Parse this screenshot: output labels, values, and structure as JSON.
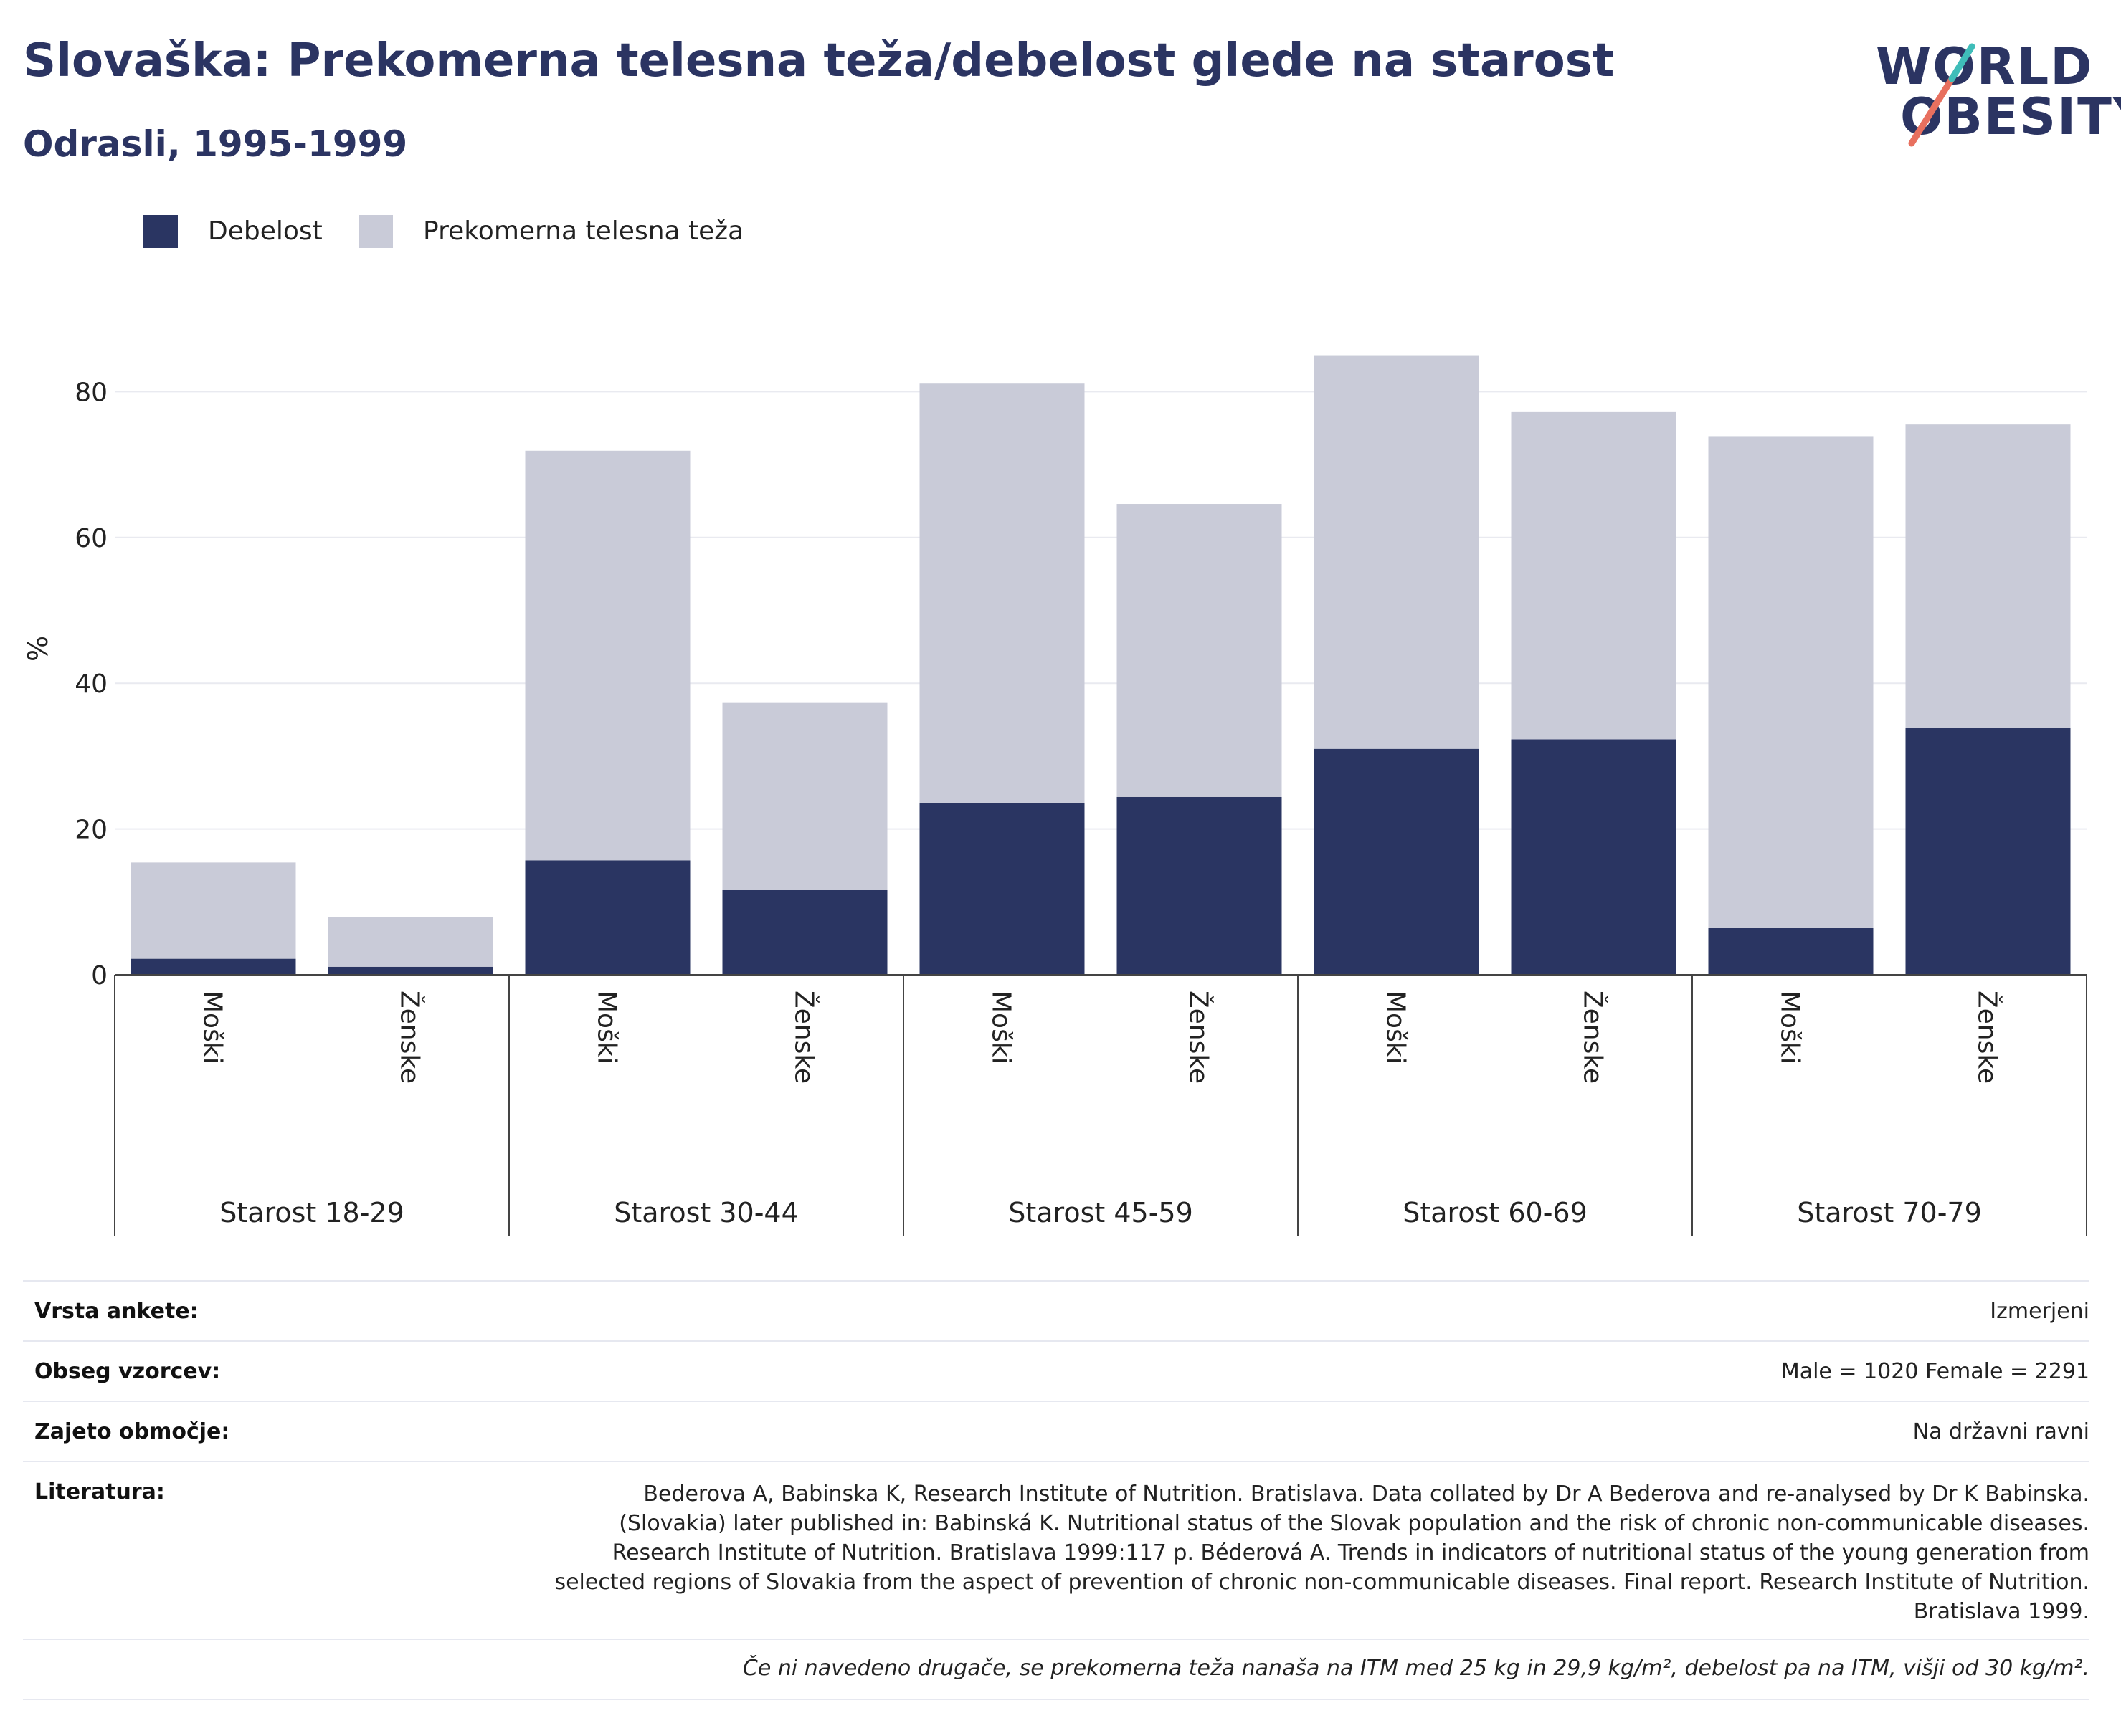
{
  "header": {
    "title": "Slovaška: Prekomerna telesna teža/debelost glede na starost",
    "subtitle": "Odrasli, 1995-1999"
  },
  "logo": {
    "line1": "WORLD",
    "line2": "OBESITY"
  },
  "legend": [
    {
      "label": "Debelost",
      "color": "#2a3562"
    },
    {
      "label": "Prekomerna telesna teža",
      "color": "#c9cbd8"
    }
  ],
  "chart_data": {
    "type": "bar",
    "stacked": true,
    "ylabel": "%",
    "ylim": [
      0,
      95
    ],
    "yticks": [
      0,
      20,
      40,
      60,
      80
    ],
    "grid": true,
    "legend_position": "top-left",
    "groups": [
      "Starost 18-29",
      "Starost 30-44",
      "Starost 45-59",
      "Starost 60-69",
      "Starost 70-79"
    ],
    "categories": [
      "Moški",
      "Ženske",
      "Moški",
      "Ženske",
      "Moški",
      "Ženske",
      "Moški",
      "Ženske",
      "Moški",
      "Ženske"
    ],
    "series": [
      {
        "name": "Debelost",
        "color": "#2a3562",
        "values": [
          2.2,
          1.1,
          15.7,
          11.7,
          23.6,
          24.4,
          31.0,
          32.3,
          6.4,
          33.9
        ]
      },
      {
        "name": "Prekomerna telesna teža",
        "color": "#c9cbd8",
        "values": [
          13.2,
          6.8,
          56.2,
          25.6,
          57.5,
          40.2,
          54.0,
          44.9,
          67.5,
          41.6
        ]
      }
    ]
  },
  "info": {
    "survey_type_label": "Vrsta ankete:",
    "survey_type_value": "Izmerjeni",
    "sample_label": "Obseg vzorcev:",
    "sample_value": "Male = 1020 Female = 2291",
    "area_label": "Zajeto območje:",
    "area_value": "Na državni ravni",
    "literature_label": "Literatura:",
    "literature_value": "Bederova A, Babinska K, Research Institute of Nutrition. Bratislava. Data collated by Dr A Bederova and re-analysed by Dr K Babinska. (Slovakia) later published in: Babinská K. Nutritional status of the Slovak population and the risk of chronic non-communicable diseases. Research Institute of Nutrition. Bratislava 1999:117 p. Béderová A. Trends in indicators of nutritional status of the young generation from selected regions of Slovakia from the aspect of prevention of chronic non-communicable diseases. Final report. Research Institute of Nutrition. Bratislava 1999.",
    "note": "Če ni navedeno drugače, se prekomerna teža nanaša na ITM med 25 kg in 29,9 kg/m², debelost pa na ITM, višji od 30 kg/m²."
  }
}
